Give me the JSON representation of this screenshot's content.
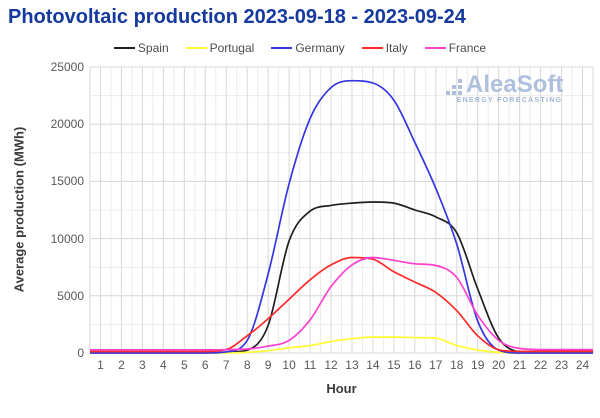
{
  "title": "Photovoltaic production 2023-09-18 - 2023-09-24",
  "logo": {
    "name": "AleaSoft",
    "subtitle": "ENERGY FORECASTING"
  },
  "colors": {
    "title": "#15399d",
    "grid_minor": "#ececec",
    "grid_major": "#d7d7d7",
    "plot_border": "#d7d7d7",
    "tick_text": "#595959",
    "logo_blue": "#a3b8da"
  },
  "chart_data": {
    "type": "line",
    "title": "Photovoltaic production 2023-09-18 - 2023-09-24",
    "xlabel": "Hour",
    "ylabel": "Average production (MWh)",
    "xlim": [
      0.5,
      24.5
    ],
    "ylim": [
      0,
      25000
    ],
    "x": [
      1,
      2,
      3,
      4,
      5,
      6,
      7,
      8,
      9,
      10,
      11,
      12,
      13,
      14,
      15,
      16,
      17,
      18,
      19,
      20,
      21,
      22,
      23,
      24
    ],
    "x_ticks": [
      1,
      2,
      3,
      4,
      5,
      6,
      7,
      8,
      9,
      10,
      11,
      12,
      13,
      14,
      15,
      16,
      17,
      18,
      19,
      20,
      21,
      22,
      23,
      24
    ],
    "y_ticks": [
      0,
      5000,
      10000,
      15000,
      20000,
      25000
    ],
    "grid": {
      "x_minor_step": 0.5,
      "y_minor_step": 2500,
      "on": true
    },
    "legend_position": "top-center",
    "series": [
      {
        "name": "Spain",
        "color": "#1f1f1f",
        "values": [
          0,
          0,
          0,
          0,
          0,
          0,
          50,
          250,
          2400,
          9800,
          12400,
          12900,
          13100,
          13200,
          13100,
          12500,
          11900,
          10500,
          5600,
          1300,
          100,
          0,
          0,
          0
        ]
      },
      {
        "name": "Portugal",
        "color": "#ffff35",
        "values": [
          0,
          0,
          0,
          0,
          0,
          0,
          0,
          60,
          200,
          450,
          650,
          1000,
          1250,
          1400,
          1400,
          1350,
          1300,
          650,
          250,
          50,
          0,
          0,
          0,
          0
        ]
      },
      {
        "name": "Germany",
        "color": "#3636e0",
        "values": [
          0,
          0,
          0,
          0,
          0,
          0,
          100,
          1100,
          6900,
          14800,
          20500,
          23200,
          23800,
          23600,
          22100,
          18400,
          14400,
          9500,
          2800,
          250,
          0,
          0,
          0,
          0
        ]
      },
      {
        "name": "Italy",
        "color": "#ff2a2a",
        "values": [
          130,
          130,
          130,
          130,
          130,
          130,
          300,
          1500,
          3000,
          4700,
          6400,
          7700,
          8350,
          8200,
          7100,
          6200,
          5300,
          3700,
          1500,
          280,
          140,
          140,
          140,
          140
        ]
      },
      {
        "name": "France",
        "color": "#ff3fd0",
        "values": [
          280,
          280,
          280,
          280,
          280,
          280,
          290,
          350,
          600,
          1100,
          2900,
          5800,
          7700,
          8350,
          8100,
          7800,
          7650,
          6600,
          3300,
          1100,
          400,
          300,
          300,
          300
        ]
      }
    ]
  }
}
